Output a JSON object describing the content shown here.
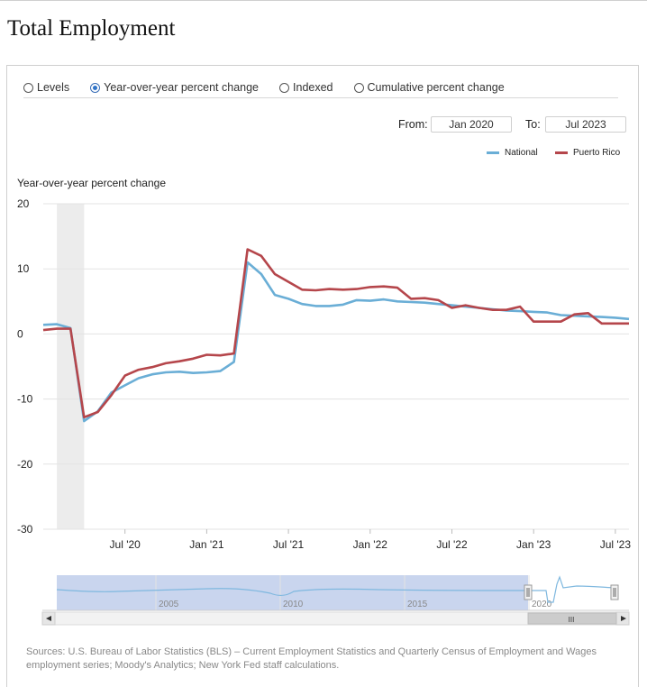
{
  "page_title": "Total Employment",
  "radio_options": [
    {
      "label": "Levels",
      "selected": false
    },
    {
      "label": "Year-over-year percent change",
      "selected": true
    },
    {
      "label": "Indexed",
      "selected": false
    },
    {
      "label": "Cumulative percent change",
      "selected": false
    }
  ],
  "range": {
    "from_label": "From:",
    "from_value": "Jan 2020",
    "to_label": "To:",
    "to_value": "Jul 2023"
  },
  "sources": "Sources: U.S. Bureau of Labor Statistics (BLS) – Current Employment Statistics and Quarterly Census of Employment and Wages employment series; Moody's Analytics; New York Fed staff calculations.",
  "colors": {
    "national": "#6aaed6",
    "puerto_rico": "#b5464b",
    "recession_shade": "#ececec",
    "navigator_fill": "#c9d5ee"
  },
  "chart_data": {
    "type": "line",
    "title": "",
    "ylabel": "Year-over-year percent change",
    "ylim": [
      -30,
      20
    ],
    "yticks": [
      20,
      10,
      0,
      -10,
      -20,
      -30
    ],
    "xlim": [
      "2020-01",
      "2023-08"
    ],
    "xticks": [
      {
        "date": "2020-07",
        "label": "Jul '20"
      },
      {
        "date": "2021-01",
        "label": "Jan '21"
      },
      {
        "date": "2021-07",
        "label": "Jul '21"
      },
      {
        "date": "2022-01",
        "label": "Jan '22"
      },
      {
        "date": "2022-07",
        "label": "Jul '22"
      },
      {
        "date": "2023-01",
        "label": "Jan '23"
      },
      {
        "date": "2023-07",
        "label": "Jul '23"
      }
    ],
    "recession_shading": [
      "2020-02",
      "2020-04"
    ],
    "legend_position": "top-right",
    "x": [
      "2020-01",
      "2020-02",
      "2020-03",
      "2020-04",
      "2020-05",
      "2020-06",
      "2020-07",
      "2020-08",
      "2020-09",
      "2020-10",
      "2020-11",
      "2020-12",
      "2021-01",
      "2021-02",
      "2021-03",
      "2021-04",
      "2021-05",
      "2021-06",
      "2021-07",
      "2021-08",
      "2021-09",
      "2021-10",
      "2021-11",
      "2021-12",
      "2022-01",
      "2022-02",
      "2022-03",
      "2022-04",
      "2022-05",
      "2022-06",
      "2022-07",
      "2022-08",
      "2022-09",
      "2022-10",
      "2022-11",
      "2022-12",
      "2023-01",
      "2023-02",
      "2023-03",
      "2023-04",
      "2023-05",
      "2023-06",
      "2023-07",
      "2023-08"
    ],
    "series": [
      {
        "name": "National",
        "values": [
          1.4,
          1.5,
          0.9,
          -13.4,
          -11.9,
          -9.0,
          -7.9,
          -6.8,
          -6.2,
          -5.9,
          -5.8,
          -6.0,
          -5.9,
          -5.7,
          -4.3,
          11.0,
          9.2,
          6.0,
          5.4,
          4.6,
          4.3,
          4.3,
          4.5,
          5.2,
          5.1,
          5.3,
          5.0,
          4.9,
          4.8,
          4.6,
          4.4,
          4.2,
          4.0,
          3.8,
          3.6,
          3.5,
          3.4,
          3.3,
          2.9,
          2.8,
          2.7,
          2.6,
          2.5,
          2.3
        ]
      },
      {
        "name": "Puerto Rico",
        "values": [
          0.6,
          0.8,
          0.8,
          -12.8,
          -12.0,
          -9.4,
          -6.4,
          -5.5,
          -5.1,
          -4.5,
          -4.2,
          -3.8,
          -3.2,
          -3.3,
          -3.0,
          13.0,
          12.0,
          9.2,
          8.0,
          6.8,
          6.7,
          6.9,
          6.8,
          6.9,
          7.2,
          7.3,
          7.1,
          5.4,
          5.5,
          5.2,
          4.0,
          4.4,
          4.0,
          3.7,
          3.7,
          4.2,
          1.9,
          1.9,
          1.9,
          3.0,
          3.2,
          1.6,
          1.6,
          1.6
        ]
      }
    ],
    "navigator": {
      "tick_labels": [
        "2005",
        "2010",
        "2015",
        "2020"
      ],
      "scrollbar_grip": "III"
    }
  }
}
